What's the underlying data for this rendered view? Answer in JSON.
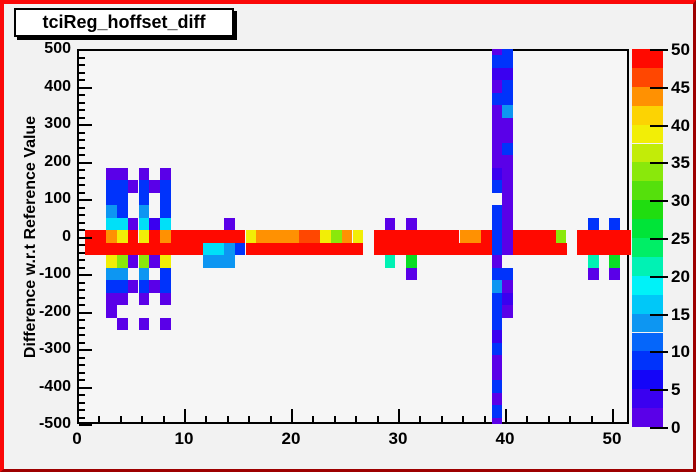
{
  "window": {
    "background": "#f2f2f2",
    "border_top_left_color": "#fb0808",
    "border_bottom_right_color": "#9d0000"
  },
  "title": "tciReg_hoffset_diff",
  "y_axis": {
    "title": "Difference w.r.t Reference Value",
    "min": -500,
    "max": 500,
    "major_tick_step": 100,
    "minor_tick_step": 20,
    "tick_labels": [
      "500",
      "400",
      "300",
      "200",
      "100",
      "0",
      "-100",
      "-200",
      "-300",
      "-400",
      "-500"
    ]
  },
  "x_axis": {
    "min": 0,
    "max": 51.6,
    "major_tick_step": 10,
    "minor_tick_step": 2,
    "tick_labels": [
      "0",
      "10",
      "20",
      "30",
      "40",
      "50"
    ],
    "tick_values": [
      0,
      10,
      20,
      30,
      40,
      50
    ]
  },
  "palette": {
    "min": 0,
    "max": 50,
    "labels": [
      "0",
      "5",
      "10",
      "15",
      "20",
      "25",
      "30",
      "35",
      "40",
      "45",
      "50"
    ],
    "band_colors_bottom_to_top": [
      "#5A00E8",
      "#3A00F0",
      "#1405F8",
      "#0033FB",
      "#0566FA",
      "#0D96F2",
      "#00C8F8",
      "#00F2F8",
      "#00F2B4",
      "#00EE66",
      "#00E438",
      "#20DD10",
      "#55E00C",
      "#8AE80B",
      "#C2EC08",
      "#F2EE06",
      "#FCD303",
      "#FF9102",
      "#FF4701",
      "#FF0900"
    ]
  },
  "chart_data": {
    "type": "heatmap",
    "title": "tciReg_hoffset_diff",
    "xlabel": "",
    "ylabel": "Difference w.r.t Reference Value",
    "xlim": [
      0,
      51.6
    ],
    "ylim": [
      -500,
      500
    ],
    "zlim": [
      0,
      50
    ],
    "x_bin_width": 1,
    "y_bin_width": 33.333,
    "row_mapping": "row k spans y-values (516.667 - 33.333*k) down to (483.333 - 33.333*k); k=15 is the band centered on 0",
    "color_key": {
      "violet": "#5A00E8",
      "bviolet": "#3A00F0",
      "blue": "#0033FB",
      "sky": "#0D96F2",
      "cyan": "#00E0F8",
      "teal": "#00F2B4",
      "green": "#0ADD25",
      "chartreuse": "#8AE80B",
      "yellow": "#F2EE06",
      "orange": "#FF9102",
      "redorange": "#FF4701",
      "red": "#FF0900"
    },
    "approx_value_of_color": {
      "violet": 1,
      "bviolet": 4,
      "blue": 8,
      "sky": 13,
      "cyan": 17,
      "teal": 21,
      "green": 27,
      "chartreuse": 33,
      "yellow": 38,
      "orange": 43,
      "redorange": 46,
      "red": 50
    },
    "cell_runs": [
      [
        0,
        39,
        39,
        "violet"
      ],
      [
        0,
        40,
        40,
        "blue"
      ],
      [
        1,
        39,
        39,
        "blue"
      ],
      [
        1,
        40,
        40,
        "blue"
      ],
      [
        2,
        39,
        40,
        "bviolet"
      ],
      [
        3,
        39,
        39,
        "violet"
      ],
      [
        3,
        40,
        40,
        "blue"
      ],
      [
        4,
        39,
        39,
        "blue"
      ],
      [
        4,
        40,
        40,
        "blue"
      ],
      [
        5,
        39,
        39,
        "violet"
      ],
      [
        5,
        40,
        40,
        "sky"
      ],
      [
        6,
        39,
        40,
        "violet"
      ],
      [
        7,
        39,
        40,
        "violet"
      ],
      [
        8,
        39,
        39,
        "violet"
      ],
      [
        8,
        40,
        40,
        "blue"
      ],
      [
        9,
        39,
        40,
        "violet"
      ],
      [
        10,
        3,
        4,
        "violet"
      ],
      [
        10,
        6,
        6,
        "violet"
      ],
      [
        10,
        8,
        8,
        "violet"
      ],
      [
        10,
        39,
        39,
        "bviolet"
      ],
      [
        10,
        40,
        40,
        "violet"
      ],
      [
        11,
        3,
        4,
        "blue"
      ],
      [
        11,
        5,
        5,
        "violet"
      ],
      [
        11,
        6,
        6,
        "blue"
      ],
      [
        11,
        7,
        7,
        "violet"
      ],
      [
        11,
        8,
        8,
        "blue"
      ],
      [
        11,
        39,
        39,
        "blue"
      ],
      [
        11,
        40,
        40,
        "violet"
      ],
      [
        12,
        3,
        4,
        "blue"
      ],
      [
        12,
        6,
        6,
        "blue"
      ],
      [
        12,
        8,
        8,
        "blue"
      ],
      [
        12,
        40,
        40,
        "violet"
      ],
      [
        13,
        3,
        3,
        "sky"
      ],
      [
        13,
        4,
        4,
        "blue"
      ],
      [
        13,
        6,
        6,
        "sky"
      ],
      [
        13,
        8,
        8,
        "blue"
      ],
      [
        13,
        39,
        39,
        "blue"
      ],
      [
        13,
        40,
        40,
        "violet"
      ],
      [
        14,
        3,
        3,
        "cyan"
      ],
      [
        14,
        4,
        4,
        "cyan"
      ],
      [
        14,
        5,
        5,
        "violet"
      ],
      [
        14,
        6,
        6,
        "cyan"
      ],
      [
        14,
        7,
        7,
        "bviolet"
      ],
      [
        14,
        8,
        8,
        "cyan"
      ],
      [
        14,
        14,
        14,
        "violet"
      ],
      [
        14,
        29,
        29,
        "violet"
      ],
      [
        14,
        31,
        31,
        "violet"
      ],
      [
        14,
        39,
        39,
        "blue"
      ],
      [
        14,
        40,
        40,
        "violet"
      ],
      [
        14,
        48,
        48,
        "blue"
      ],
      [
        14,
        50,
        50,
        "blue"
      ],
      [
        15,
        1,
        2,
        "red"
      ],
      [
        15,
        3,
        3,
        "orange"
      ],
      [
        15,
        4,
        4,
        "yellow"
      ],
      [
        15,
        5,
        5,
        "red"
      ],
      [
        15,
        6,
        6,
        "yellow"
      ],
      [
        15,
        7,
        7,
        "red"
      ],
      [
        15,
        8,
        8,
        "orange"
      ],
      [
        15,
        9,
        15,
        "red"
      ],
      [
        15,
        16,
        16,
        "yellow"
      ],
      [
        15,
        17,
        20,
        "orange"
      ],
      [
        15,
        21,
        22,
        "redorange"
      ],
      [
        15,
        23,
        23,
        "yellow"
      ],
      [
        15,
        24,
        24,
        "chartreuse"
      ],
      [
        15,
        25,
        25,
        "orange"
      ],
      [
        15,
        26,
        26,
        "yellow"
      ],
      [
        15,
        28,
        35,
        "red"
      ],
      [
        15,
        36,
        37,
        "orange"
      ],
      [
        15,
        38,
        38,
        "red"
      ],
      [
        15,
        39,
        39,
        "blue"
      ],
      [
        15,
        40,
        40,
        "violet"
      ],
      [
        15,
        41,
        44,
        "red"
      ],
      [
        15,
        45,
        45,
        "chartreuse"
      ],
      [
        15,
        47,
        51,
        "red"
      ],
      [
        16,
        1,
        11,
        "red"
      ],
      [
        16,
        12,
        13,
        "cyan"
      ],
      [
        16,
        14,
        14,
        "sky"
      ],
      [
        16,
        15,
        15,
        "blue"
      ],
      [
        16,
        16,
        26,
        "red"
      ],
      [
        16,
        28,
        38,
        "red"
      ],
      [
        16,
        39,
        39,
        "blue"
      ],
      [
        16,
        40,
        40,
        "violet"
      ],
      [
        16,
        41,
        45,
        "red"
      ],
      [
        16,
        47,
        51,
        "red"
      ],
      [
        17,
        3,
        3,
        "yellow"
      ],
      [
        17,
        4,
        4,
        "chartreuse"
      ],
      [
        17,
        5,
        5,
        "violet"
      ],
      [
        17,
        6,
        6,
        "chartreuse"
      ],
      [
        17,
        7,
        7,
        "violet"
      ],
      [
        17,
        8,
        8,
        "yellow"
      ],
      [
        17,
        12,
        14,
        "sky"
      ],
      [
        17,
        29,
        29,
        "teal"
      ],
      [
        17,
        31,
        31,
        "green"
      ],
      [
        17,
        39,
        39,
        "violet"
      ],
      [
        17,
        48,
        48,
        "teal"
      ],
      [
        17,
        50,
        50,
        "green"
      ],
      [
        18,
        3,
        4,
        "sky"
      ],
      [
        18,
        6,
        6,
        "sky"
      ],
      [
        18,
        8,
        8,
        "blue"
      ],
      [
        18,
        31,
        31,
        "violet"
      ],
      [
        18,
        39,
        40,
        "blue"
      ],
      [
        18,
        48,
        48,
        "violet"
      ],
      [
        18,
        50,
        50,
        "violet"
      ],
      [
        19,
        3,
        4,
        "blue"
      ],
      [
        19,
        5,
        5,
        "violet"
      ],
      [
        19,
        6,
        6,
        "blue"
      ],
      [
        19,
        7,
        7,
        "violet"
      ],
      [
        19,
        8,
        8,
        "blue"
      ],
      [
        19,
        39,
        39,
        "sky"
      ],
      [
        19,
        40,
        40,
        "violet"
      ],
      [
        20,
        3,
        4,
        "violet"
      ],
      [
        20,
        6,
        6,
        "violet"
      ],
      [
        20,
        8,
        8,
        "violet"
      ],
      [
        20,
        39,
        39,
        "blue"
      ],
      [
        20,
        40,
        40,
        "bviolet"
      ],
      [
        21,
        3,
        3,
        "violet"
      ],
      [
        21,
        39,
        39,
        "blue"
      ],
      [
        21,
        40,
        40,
        "violet"
      ],
      [
        22,
        4,
        4,
        "violet"
      ],
      [
        22,
        6,
        6,
        "violet"
      ],
      [
        22,
        8,
        8,
        "violet"
      ],
      [
        22,
        39,
        39,
        "blue"
      ],
      [
        23,
        39,
        39,
        "bviolet"
      ],
      [
        24,
        39,
        39,
        "blue"
      ],
      [
        25,
        39,
        39,
        "violet"
      ],
      [
        26,
        39,
        39,
        "violet"
      ],
      [
        27,
        39,
        39,
        "blue"
      ],
      [
        28,
        39,
        39,
        "violet"
      ],
      [
        29,
        39,
        39,
        "blue"
      ],
      [
        30,
        39,
        39,
        "violet"
      ]
    ]
  }
}
